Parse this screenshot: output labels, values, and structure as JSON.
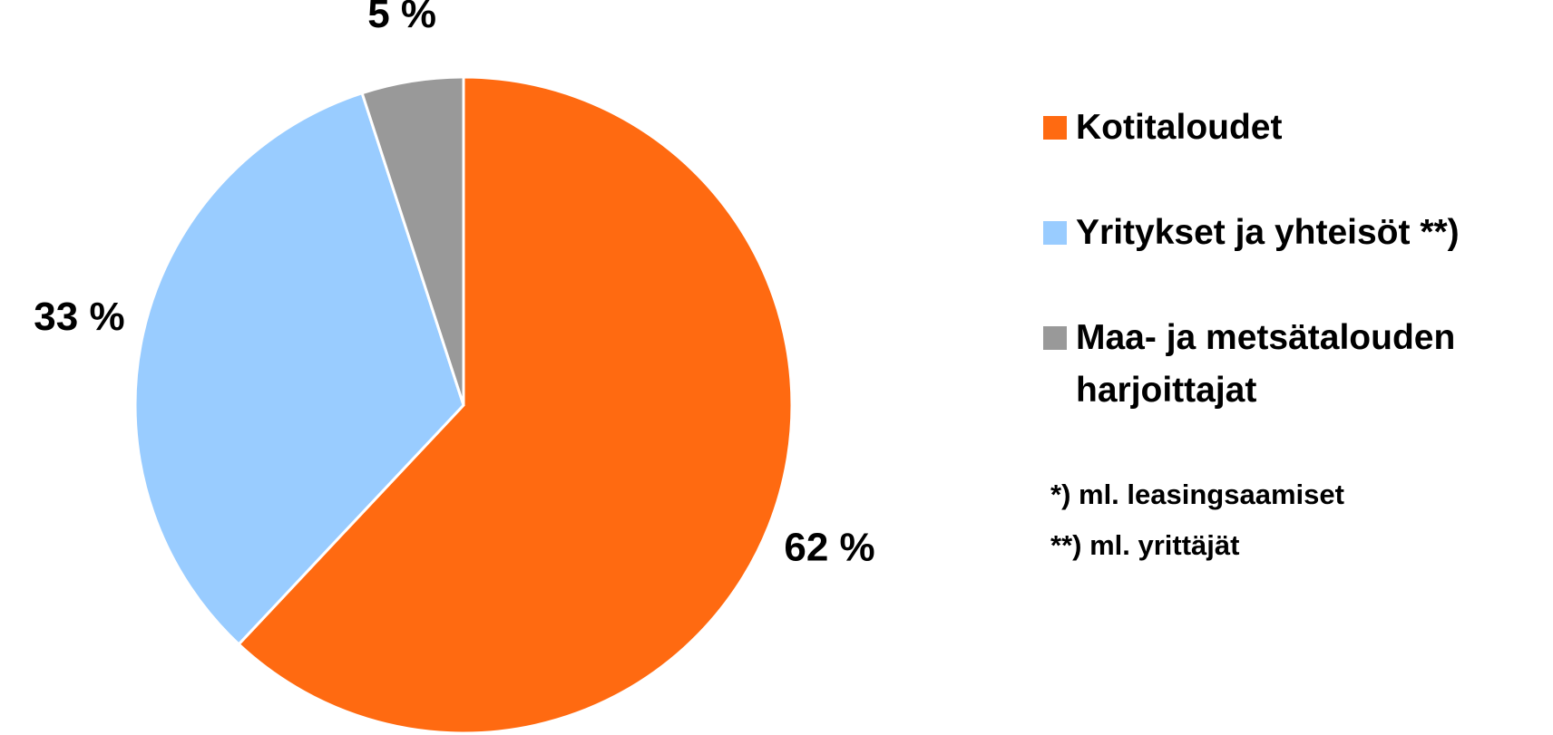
{
  "chart_data": {
    "type": "pie",
    "categories": [
      "Kotitaloudet",
      "Yritykset ja yhteisöt **)",
      "Maa- ja metsätalouden harjoittajat"
    ],
    "values": [
      62,
      33,
      5
    ],
    "value_labels": [
      "62 %",
      "33 %",
      "5 %"
    ],
    "colors": [
      "#ff6a11",
      "#99ccff",
      "#999999"
    ],
    "notes": [
      "*) ml. leasingsaamiset",
      "**) ml. yrittäjät"
    ]
  }
}
